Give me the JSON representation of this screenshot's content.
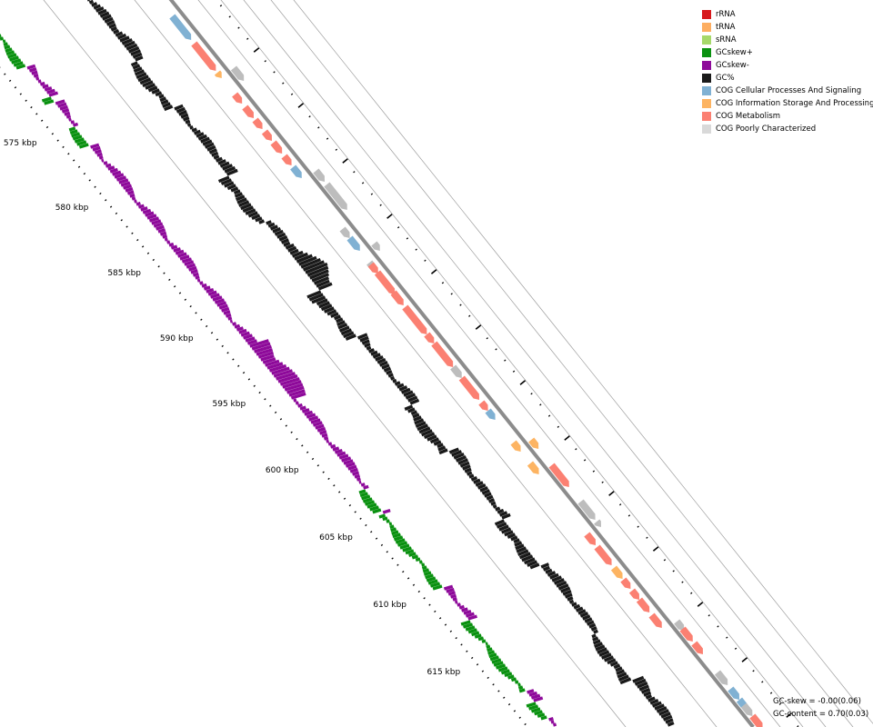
{
  "legend": [
    {
      "label": "rRNA",
      "color": "#d7191c"
    },
    {
      "label": "tRNA",
      "color": "#fdae61"
    },
    {
      "label": "sRNA",
      "color": "#a6d96a"
    },
    {
      "label": "GCskew+",
      "color": "#0a9110"
    },
    {
      "label": "GCskew-",
      "color": "#8e0a9a"
    },
    {
      "label": "GC%",
      "color": "#1a1a1a"
    },
    {
      "label": "COG Cellular Processes And Signaling",
      "color": "#80b1d3"
    },
    {
      "label": "COG Information Storage And Processing",
      "color": "#fdb462"
    },
    {
      "label": "COG Metabolism",
      "color": "#fb8072"
    },
    {
      "label": "COG Poorly Characterized",
      "color": "#d9d9d9"
    }
  ],
  "scale_labels": [
    "575 kbp",
    "580 kbp",
    "585 kbp",
    "590 kbp",
    "595 kbp",
    "600 kbp",
    "605 kbp",
    "610 kbp",
    "615 kbp"
  ],
  "stats": {
    "gc_skew": "GC-skew = -0.00(0.06)",
    "gc_content": "GC-content = 0.70(0.03)"
  },
  "colors": {
    "gc_skew_plus": "#0a9110",
    "gc_skew_minus": "#8e0a9a",
    "gc_content": "#1a1a1a",
    "backbone": "#8c8c8c",
    "feature_gray": "#bdbdbd"
  }
}
